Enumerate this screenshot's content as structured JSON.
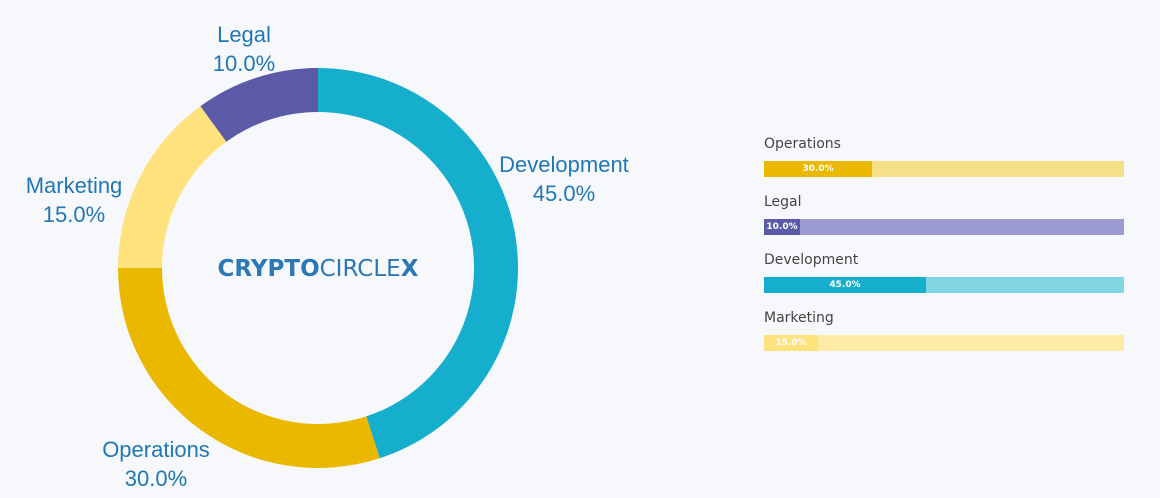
{
  "chart_data": [
    {
      "type": "pie",
      "donut": true,
      "center_logo": {
        "bold_part": "CRYPTO",
        "light_part": "CIRCLE",
        "tail": "X"
      },
      "slices": [
        {
          "label": "Development",
          "value": 45.0,
          "value_label": "45.0%",
          "color": "#16aecd"
        },
        {
          "label": "Operations",
          "value": 30.0,
          "value_label": "30.0%",
          "color": "#ebb800"
        },
        {
          "label": "Marketing",
          "value": 15.0,
          "value_label": "15.0%",
          "color": "#fee27e"
        },
        {
          "label": "Legal",
          "value": 10.0,
          "value_label": "10.0%",
          "color": "#5b5aa7"
        }
      ]
    },
    {
      "type": "bar",
      "orientation": "horizontal",
      "xlim": [
        0,
        100
      ],
      "bars": [
        {
          "label": "Operations",
          "value": 30.0,
          "value_label": "30.0%",
          "color": "#ebb800",
          "track_color": "#f5df87"
        },
        {
          "label": "Legal",
          "value": 10.0,
          "value_label": "10.0%",
          "color": "#5b5aa7",
          "track_color": "#9d9cd2"
        },
        {
          "label": "Development",
          "value": 45.0,
          "value_label": "45.0%",
          "color": "#16aecd",
          "track_color": "#82d5e3"
        },
        {
          "label": "Marketing",
          "value": 15.0,
          "value_label": "15.0%",
          "color": "#fee27e",
          "track_color": "#fdeba7"
        }
      ]
    }
  ]
}
